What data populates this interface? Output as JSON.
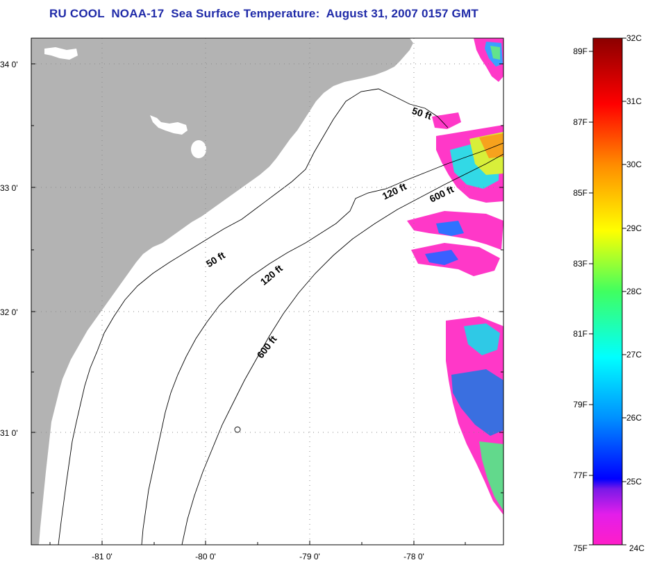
{
  "title": "RU COOL  NOAA-17  Sea Surface Temperature:  August 31, 2007 0157 GMT",
  "map": {
    "lat_labels": [
      {
        "lat": 34,
        "text": "34 0'"
      },
      {
        "lat": 33,
        "text": "33 0'"
      },
      {
        "lat": 32,
        "text": "32 0'"
      },
      {
        "lat": 31,
        "text": "31 0'"
      }
    ],
    "lon_labels": [
      {
        "lon": -81,
        "text": "-81 0'"
      },
      {
        "lon": -80,
        "text": "-80 0'"
      },
      {
        "lon": -79,
        "text": "-79 0'"
      },
      {
        "lon": -78,
        "text": "-78 0'"
      }
    ],
    "contour_labels": [
      {
        "id": "contour-label-50ft-north",
        "text": "50 ft"
      },
      {
        "id": "contour-label-120ft-north",
        "text": "120 ft"
      },
      {
        "id": "contour-label-600ft-north",
        "text": "600 ft"
      },
      {
        "id": "contour-label-50ft-south",
        "text": "50 ft"
      },
      {
        "id": "contour-label-120ft-south",
        "text": "120 ft"
      },
      {
        "id": "contour-label-600ft-south",
        "text": "600 ft"
      }
    ],
    "colors": {
      "land": "#b3b3b3",
      "ocean": "#ffffff",
      "title": "#1f2aa8"
    }
  },
  "colorbar": {
    "celsius_labels": [
      "32C",
      "31C",
      "30C",
      "29C",
      "28C",
      "27C",
      "26C",
      "25C",
      "24C"
    ],
    "fahrenheit_labels": [
      "89F",
      "87F",
      "85F",
      "83F",
      "81F",
      "79F",
      "77F",
      "75F"
    ],
    "celsius_values": [
      32,
      31,
      30,
      29,
      28,
      27,
      26,
      25,
      24
    ],
    "fahrenheit_values": [
      89,
      87,
      85,
      83,
      81,
      79,
      77,
      75
    ],
    "range_c": [
      24,
      32
    ]
  }
}
